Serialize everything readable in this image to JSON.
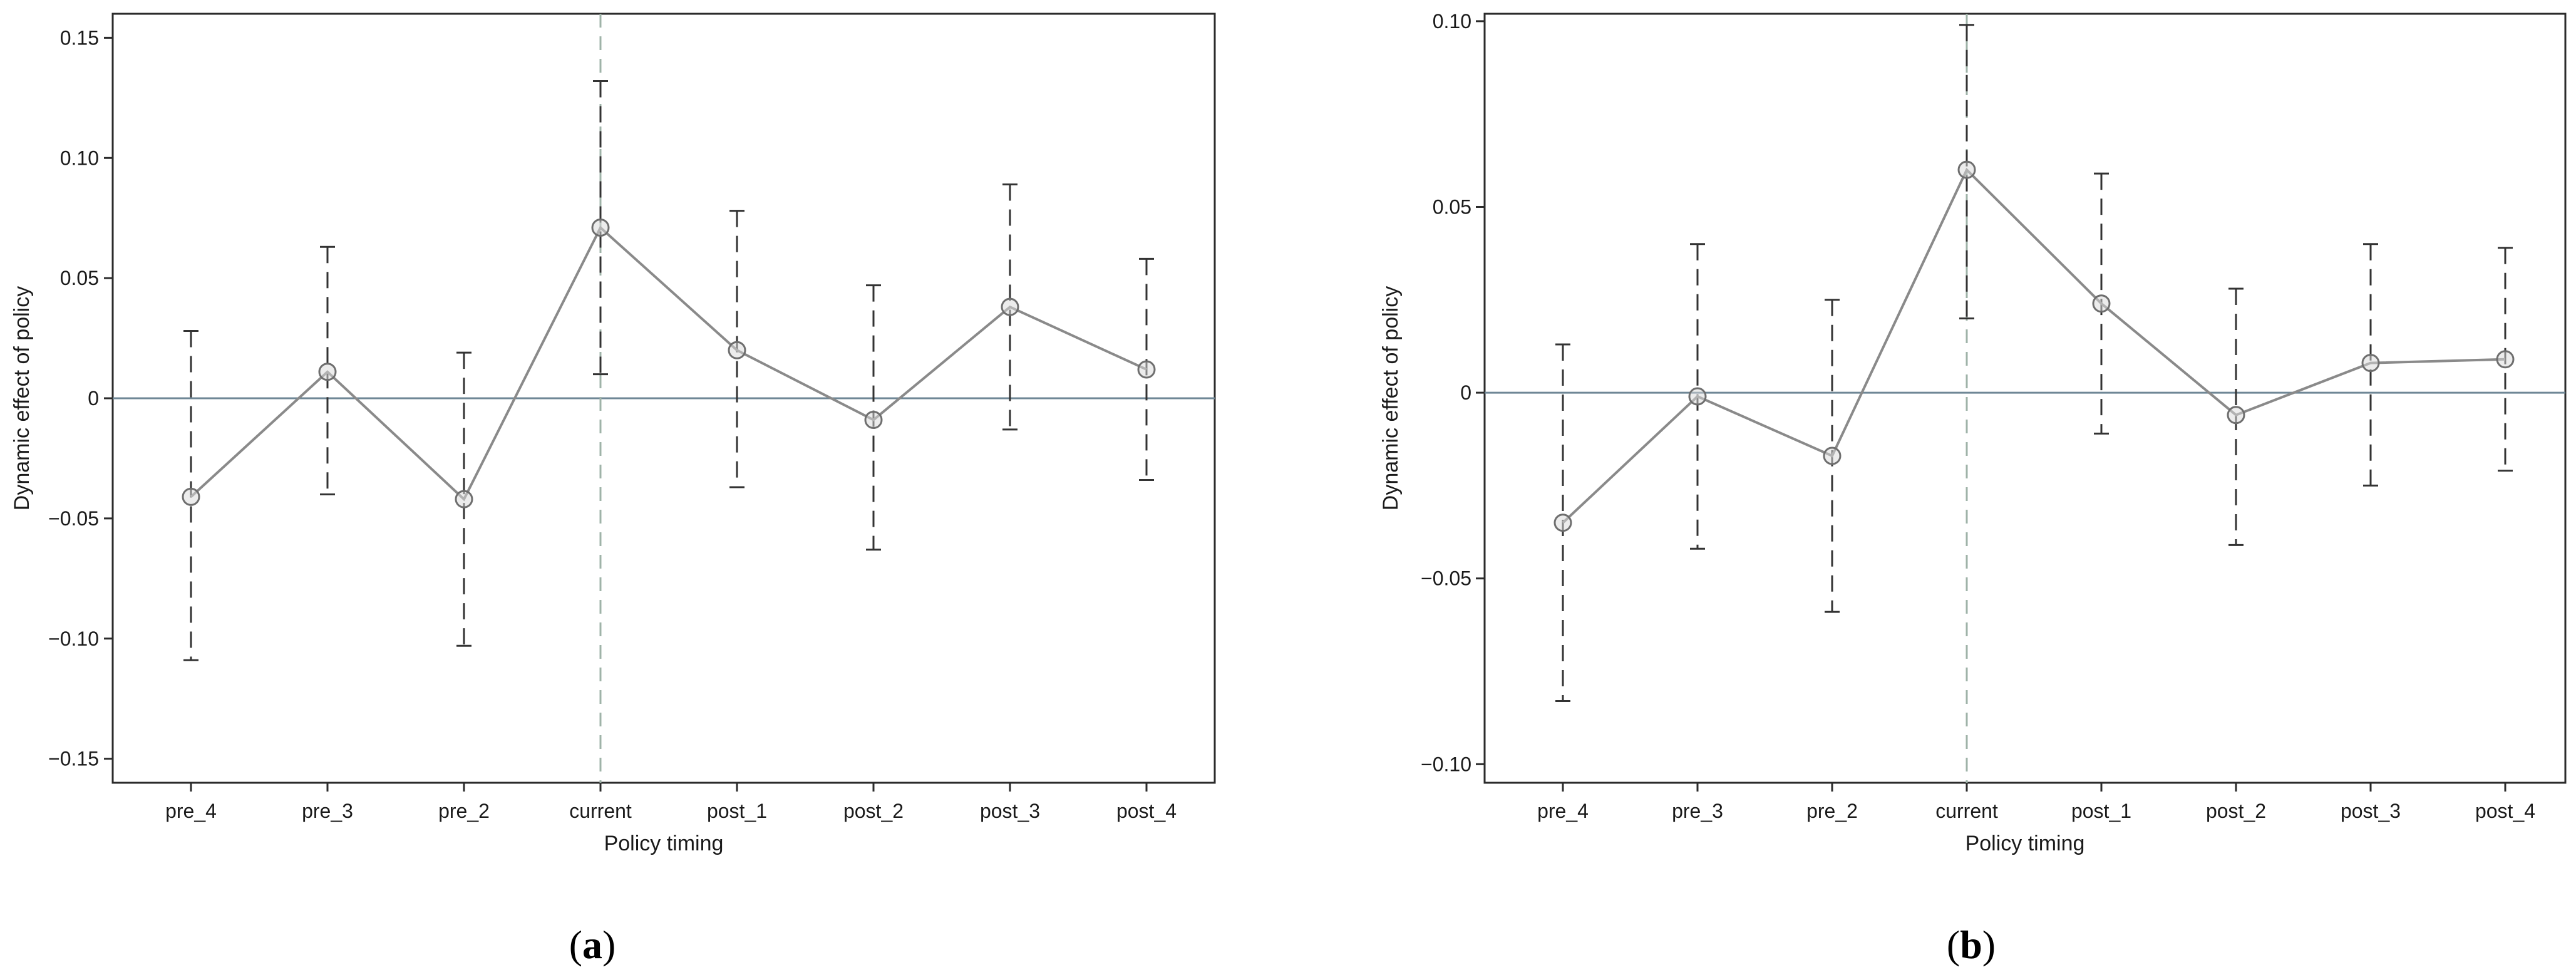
{
  "chart_data": [
    {
      "type": "line",
      "panel_label": "a",
      "xlabel": "Policy timing",
      "ylabel": "Dynamic effect of policy",
      "categories": [
        "pre_4",
        "pre_3",
        "pre_2",
        "current",
        "post_1",
        "post_2",
        "post_3",
        "post_4"
      ],
      "series": [
        {
          "values": [
            -0.041,
            0.011,
            -0.042,
            0.071,
            0.02,
            -0.009,
            0.038,
            0.012
          ],
          "ci_upper": [
            0.028,
            0.063,
            0.019,
            0.132,
            0.078,
            0.047,
            0.089,
            0.058
          ],
          "ci_lower": [
            -0.109,
            -0.04,
            -0.103,
            0.01,
            -0.037,
            -0.063,
            -0.013,
            -0.034
          ]
        }
      ],
      "ylim": [
        -0.16,
        0.16
      ],
      "yticks": [
        -0.15,
        -0.1,
        -0.05,
        0,
        0.05,
        0.1,
        0.15
      ],
      "ytick_labels": [
        "−0.15",
        "−0.10",
        "−0.05",
        "0",
        "0.05",
        "0.10",
        "0.15"
      ],
      "reference_line_y": 0,
      "reference_line_x": "current",
      "grid": false
    },
    {
      "type": "line",
      "panel_label": "b",
      "xlabel": "Policy timing",
      "ylabel": "Dynamic effect of policy",
      "categories": [
        "pre_4",
        "pre_3",
        "pre_2",
        "current",
        "post_1",
        "post_2",
        "post_3",
        "post_4"
      ],
      "series": [
        {
          "values": [
            -0.035,
            -0.001,
            -0.017,
            0.06,
            0.024,
            -0.006,
            0.008,
            0.009
          ],
          "ci_upper": [
            0.013,
            0.04,
            0.025,
            0.099,
            0.059,
            0.028,
            0.04,
            0.039
          ],
          "ci_lower": [
            -0.083,
            -0.042,
            -0.059,
            0.02,
            -0.011,
            -0.041,
            -0.025,
            -0.021
          ]
        }
      ],
      "ylim": [
        -0.105,
        0.102
      ],
      "yticks": [
        -0.1,
        -0.05,
        0,
        0.05,
        0.1
      ],
      "ytick_labels": [
        "−0.10",
        "−0.05",
        "0",
        "0.05",
        "0.10"
      ],
      "reference_line_y": 0,
      "reference_line_x": "current",
      "grid": false
    }
  ],
  "colors": {
    "series_line": "#8a8a8a",
    "marker_edge": "#6e6e6e",
    "error_bar": "#333333",
    "zero_line": "#6f8796",
    "policy_line": "#9fb3a8",
    "frame": "#2b2b2b"
  }
}
